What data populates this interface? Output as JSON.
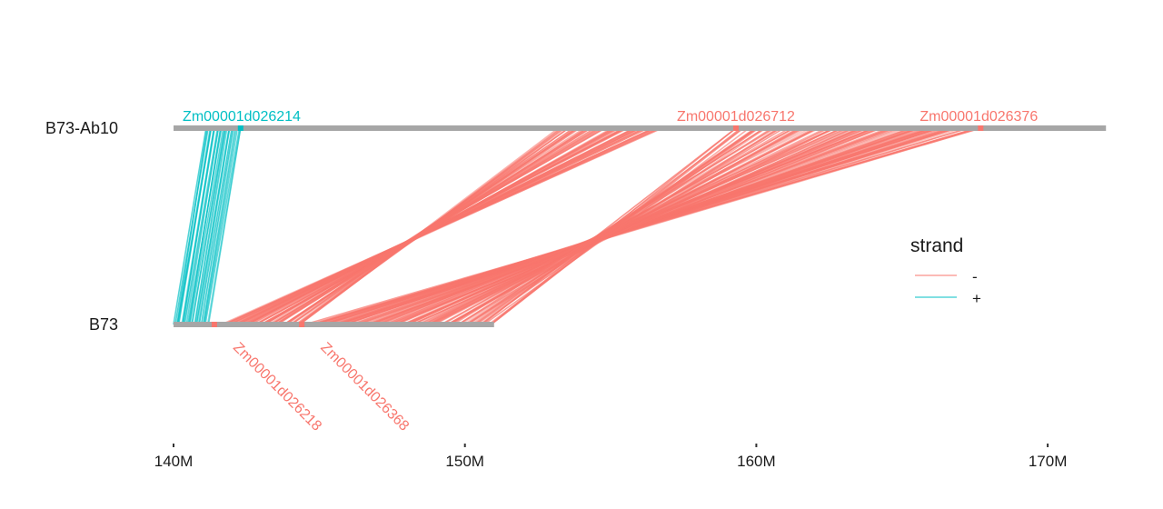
{
  "colors": {
    "minus": "#F8766D",
    "plus": "#00BFC4",
    "track": "#A6A6A6"
  },
  "chart_data": {
    "type": "synteny",
    "unit": "bp",
    "tracks": [
      {
        "name": "B73-Ab10",
        "start": 140000000,
        "end": 172000000
      },
      {
        "name": "B73",
        "start": 140000000,
        "end": 151000000
      }
    ],
    "x_ticks": [
      {
        "value": 140000000,
        "label": "140M"
      },
      {
        "value": 150000000,
        "label": "150M"
      },
      {
        "value": 160000000,
        "label": "160M"
      },
      {
        "value": 170000000,
        "label": "170M"
      }
    ],
    "top_genes": [
      {
        "name": "Zm00001d026214",
        "pos": 142300000,
        "strand": "+"
      },
      {
        "name": "Zm00001d026712",
        "pos": 159300000,
        "strand": "-"
      },
      {
        "name": "Zm00001d026376",
        "pos": 167700000,
        "strand": "-"
      }
    ],
    "bottom_genes": [
      {
        "name": "Zm00001d026218",
        "pos": 141400000,
        "strand": "-"
      },
      {
        "name": "Zm00001d026368",
        "pos": 144400000,
        "strand": "-"
      }
    ],
    "links": [
      {
        "strand": "+",
        "top": [
          141100000,
          142300000
        ],
        "bottom": [
          140000000,
          141200000
        ],
        "count": 30
      },
      {
        "strand": "-",
        "top": [
          153200000,
          156800000
        ],
        "bottom": [
          141600000,
          144400000
        ],
        "count": 60
      },
      {
        "strand": "-",
        "top": [
          159300000,
          167700000
        ],
        "bottom": [
          144500000,
          150900000
        ],
        "count": 110
      }
    ],
    "legend": {
      "title": "strand",
      "items": [
        {
          "label": "-",
          "strand": "-"
        },
        {
          "label": "+",
          "strand": "+"
        }
      ]
    }
  }
}
